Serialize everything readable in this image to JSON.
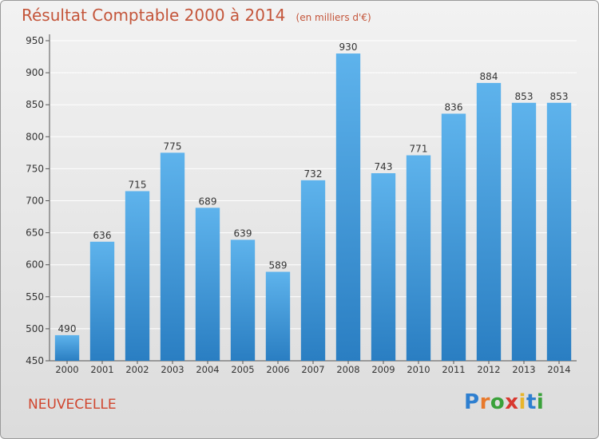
{
  "header": {
    "title": "Résultat Comptable 2000 à 2014",
    "subtitle": "(en milliers d'€)"
  },
  "town": "NEUVECELLE",
  "logo": {
    "text": "Proxiti",
    "letters": [
      "P",
      "r",
      "o",
      "x",
      "i",
      "t",
      "i"
    ],
    "colors": [
      "#2e7fd0",
      "#e8792b",
      "#3aa13a",
      "#d8382f",
      "#e8b52b",
      "#2e7fd0",
      "#3aa13a"
    ]
  },
  "colors": {
    "bar_top": "#5eb3ec",
    "bar_bottom": "#2a7ec2",
    "title": "#c4553a",
    "grid": "#ffffff"
  },
  "chart_data": {
    "type": "bar",
    "title": "Résultat Comptable 2000 à 2014",
    "subtitle": "(en milliers d'€)",
    "xlabel": "",
    "ylabel": "",
    "categories": [
      "2000",
      "2001",
      "2002",
      "2003",
      "2004",
      "2005",
      "2006",
      "2007",
      "2008",
      "2009",
      "2010",
      "2011",
      "2012",
      "2013",
      "2014"
    ],
    "values": [
      490,
      636,
      715,
      775,
      689,
      639,
      589,
      732,
      930,
      743,
      771,
      836,
      884,
      853,
      853
    ],
    "ylim": [
      450,
      950
    ],
    "yticks": [
      450,
      500,
      550,
      600,
      650,
      700,
      750,
      800,
      850,
      900,
      950
    ],
    "grid": true,
    "legend": "none"
  }
}
